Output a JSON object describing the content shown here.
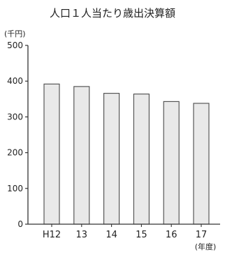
{
  "chart_data": {
    "type": "bar",
    "title": "人口１人当たり歳出決算額",
    "yunit": "(千円)",
    "xunit": "(年度)",
    "categories": [
      "H12",
      "13",
      "14",
      "15",
      "16",
      "17"
    ],
    "values": [
      392,
      385,
      366,
      364,
      343,
      338
    ],
    "ylim": [
      0,
      500
    ],
    "yticks": [
      0,
      100,
      200,
      300,
      400,
      500
    ],
    "grid": false,
    "legend": "none",
    "colors": {
      "bar_fill": "#e9e9e9",
      "bar_stroke": "#4a4a4a",
      "axis": "#333333"
    }
  }
}
